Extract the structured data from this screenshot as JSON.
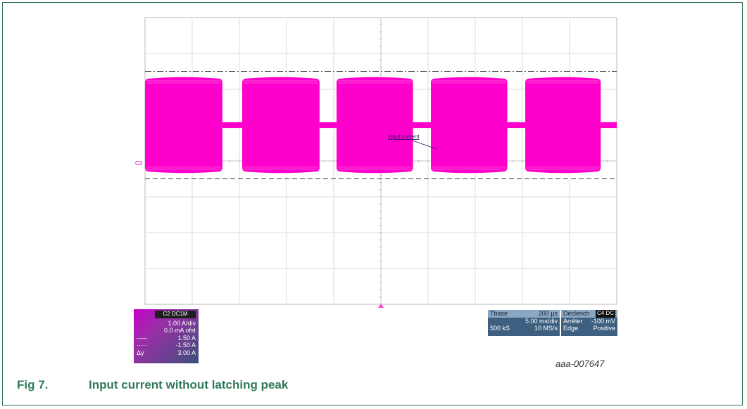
{
  "chart_data": {
    "type": "line",
    "title": "",
    "xlabel": "",
    "ylabel": "",
    "annotations": [
      "input current"
    ],
    "channel_label": "C2",
    "x_unit": "ms",
    "x_divisions": 10,
    "y_divisions": 8,
    "xlim": [
      0,
      50
    ],
    "ylim": [
      -5,
      3
    ],
    "cursor_levels": [
      1.5,
      -1.5
    ],
    "series": [
      {
        "name": "",
        "color": "#ff00cc",
        "envelope": {
          "bursts_ms": [
            [
              0,
              8.2
            ],
            [
              10.3,
              18.5
            ],
            [
              20.3,
              28.4
            ],
            [
              30.3,
              38.4
            ],
            [
              40.3,
              48.3
            ]
          ],
          "burst_peak_A": 1.3,
          "idle_peak_A": 0.08,
          "trace_end_ms": 50
        }
      }
    ]
  },
  "ch_panel": {
    "header": "C2 DC1M",
    "vdiv": "1.00 A/div",
    "offset": "0.0 mA ofst",
    "cursor1": "1.50 A",
    "cursor2": "-1.50 A",
    "dy_label": "Δy",
    "dy": "3.00 A"
  },
  "tb_panel": {
    "label": "Tbase",
    "delay": "200 µs",
    "tdiv": "5.00 ms/div",
    "samples": "500 kS",
    "rate": "10 MS/s"
  },
  "trig_panel": {
    "label": "Déclench",
    "badge": "C4 DC",
    "mode": "Arrêter",
    "level": "-100 mV",
    "type": "Edge",
    "slope": "Positive"
  },
  "figure_code": "aaa-007647",
  "caption": {
    "number": "Fig 7.",
    "text": "Input current without latching peak"
  }
}
